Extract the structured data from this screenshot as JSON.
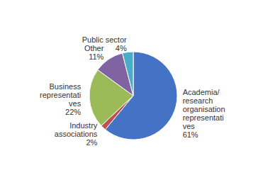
{
  "chart_data": {
    "type": "pie",
    "categories": [
      "Academia/\nresearch\norganisation\nrepresentati\nves",
      "Industry\nassociations",
      "Business\nrepresentati\nves",
      "Other",
      "Public sector"
    ],
    "values": [
      61,
      2,
      22,
      11,
      4
    ],
    "value_labels": [
      "61%",
      "2%",
      "22%",
      "11%",
      "4%"
    ],
    "colors": [
      "#4472C4",
      "#C0504D",
      "#9BBB59",
      "#8064A2",
      "#4BACC6"
    ]
  }
}
